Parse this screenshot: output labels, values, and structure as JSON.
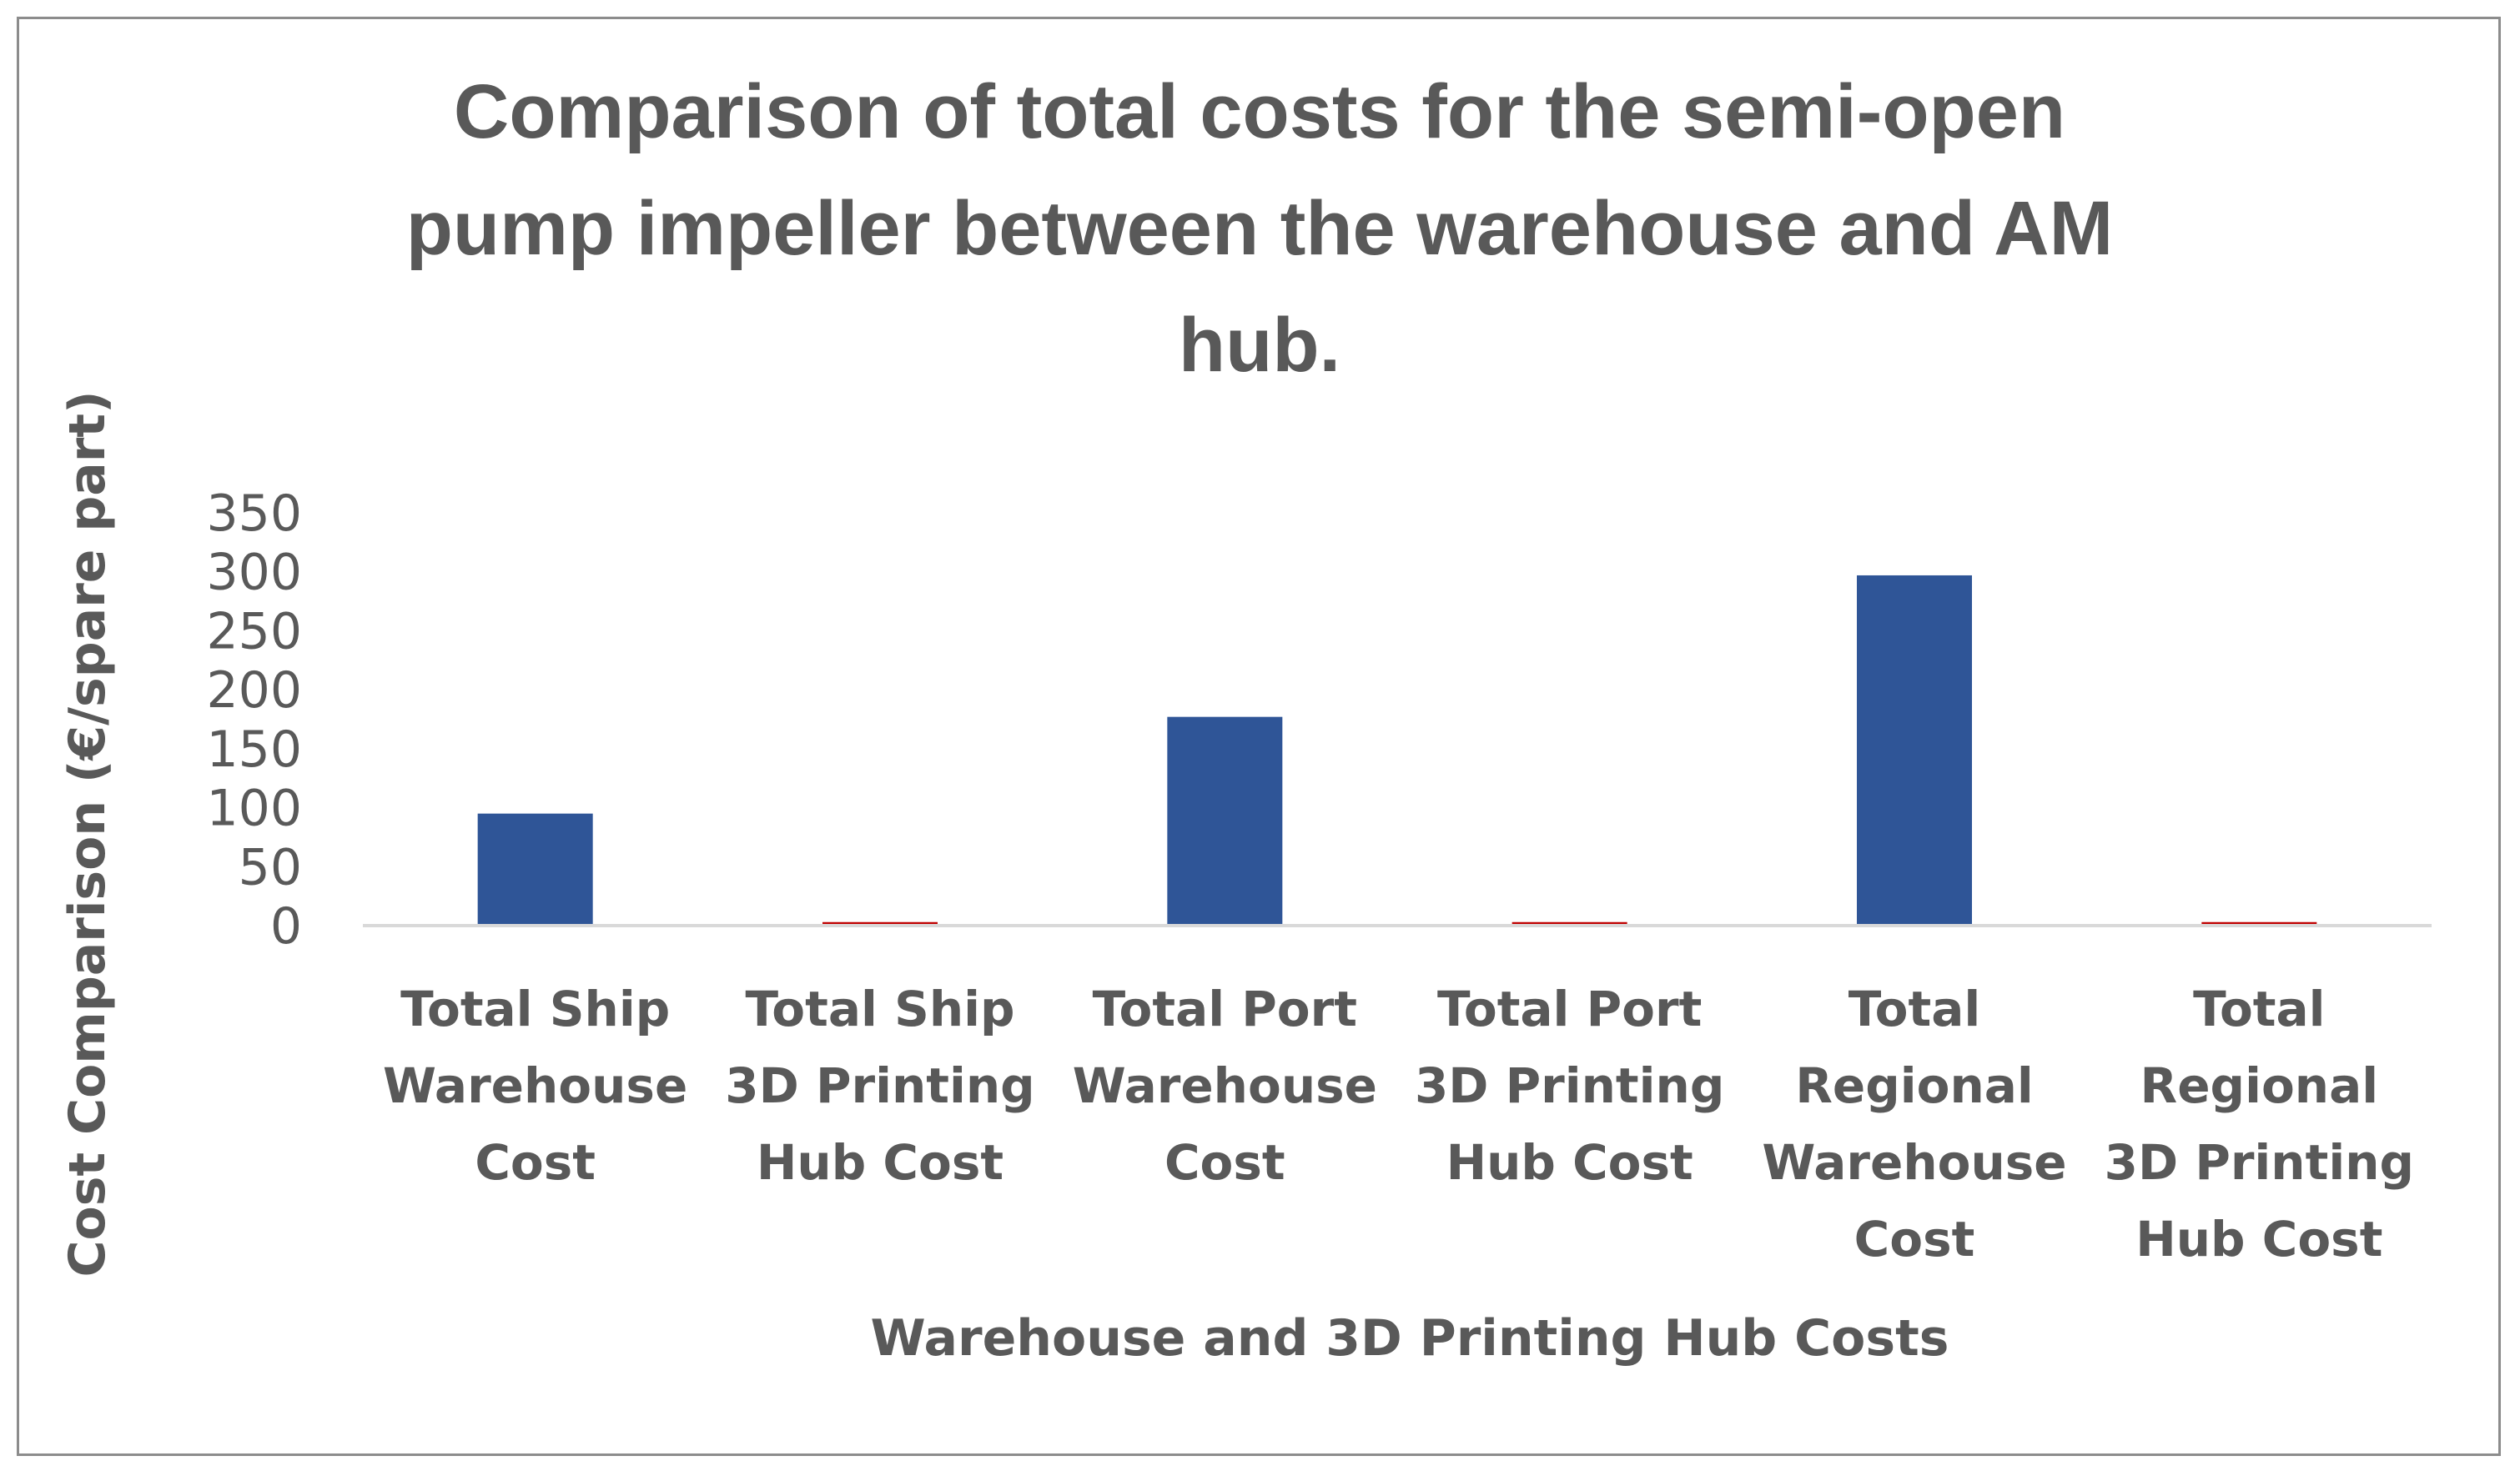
{
  "chart_data": {
    "type": "bar",
    "title": "Comparison of total costs for the semi-open pump impeller between the warehouse and AM hub.",
    "title_lines": [
      "Comparison of total costs for the semi-open",
      "pump impeller between the warehouse and AM",
      "hub."
    ],
    "xlabel": "Warehouse and 3D Printing Hub Costs",
    "ylabel": "Cost Comparison   (€/spare part)",
    "ylim": [
      0,
      350
    ],
    "yticks": [
      "350",
      "300",
      "250",
      "200",
      "150",
      "100",
      "50",
      "0"
    ],
    "grid": false,
    "legend": "none",
    "categories": [
      "Total Ship Warehouse Cost",
      "Total Ship 3D Printing Hub Cost",
      "Total Port Warehouse Cost",
      "Total Port 3D Printing Hub Cost",
      "Total Regional Warehouse Cost",
      "Total Regional 3D Printing Hub Cost"
    ],
    "category_lines": [
      [
        "Total Ship",
        "Warehouse",
        "Cost"
      ],
      [
        "Total Ship",
        "3D Printing",
        "Hub Cost"
      ],
      [
        "Total Port",
        "Warehouse",
        "Cost"
      ],
      [
        "Total Port",
        "3D Printing",
        "Hub Cost"
      ],
      [
        "Total",
        "Regional",
        "Warehouse",
        "Cost"
      ],
      [
        "Total",
        "Regional",
        "3D Printing",
        "Hub Cost"
      ]
    ],
    "values": [
      95,
      3,
      177,
      3,
      297,
      3
    ],
    "bar_colors": [
      "#2F5597",
      "#C00000",
      "#2F5597",
      "#C00000",
      "#2F5597",
      "#C00000"
    ],
    "axis_color": "#D9D9D9",
    "text_color": "#595959"
  }
}
